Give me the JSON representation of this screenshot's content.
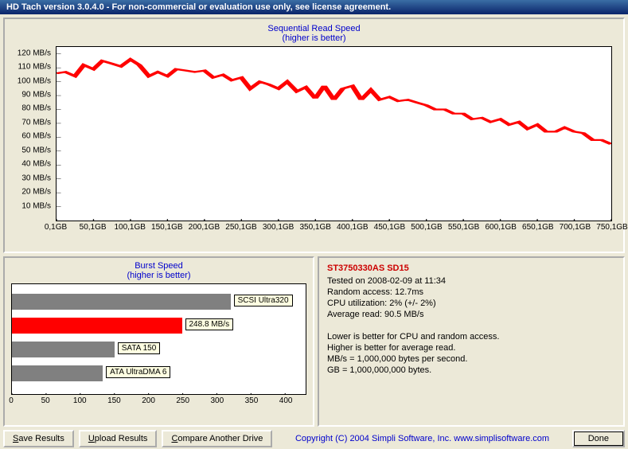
{
  "window": {
    "title": "HD Tach version 3.0.4.0  - For non-commercial or evaluation use only, see license agreement."
  },
  "sequential_chart": {
    "type": "line",
    "title": "Sequential Read Speed",
    "subtitle": "(higher is better)",
    "title_color": "#0000cc",
    "line_color": "#ff0000",
    "line_width": 2,
    "background_color": "#ffffff",
    "tick_color": "#000000",
    "xlim": [
      0.1,
      750.1
    ],
    "ylim": [
      0,
      125
    ],
    "xtick_step": 50,
    "ytick_step": 10,
    "x_unit": "GB",
    "y_unit": "MB/s",
    "y_labels": [
      "10 MB/s",
      "20 MB/s",
      "30 MB/s",
      "40 MB/s",
      "50 MB/s",
      "60 MB/s",
      "70 MB/s",
      "80 MB/s",
      "90 MB/s",
      "100 MB/s",
      "110 MB/s",
      "120 MB/s"
    ],
    "x_labels": [
      "0,1GB",
      "50,1GB",
      "100,1GB",
      "150,1GB",
      "200,1GB",
      "250,1GB",
      "300,1GB",
      "350,1GB",
      "400,1GB",
      "450,1GB",
      "500,1GB",
      "550,1GB",
      "600,1GB",
      "650,1GB",
      "700,1GB",
      "750,1GB"
    ],
    "data": [
      [
        0,
        106
      ],
      [
        12,
        107
      ],
      [
        25,
        104
      ],
      [
        37,
        112
      ],
      [
        50,
        109
      ],
      [
        62,
        115
      ],
      [
        75,
        113
      ],
      [
        87,
        111
      ],
      [
        100,
        116
      ],
      [
        112,
        112
      ],
      [
        125,
        104
      ],
      [
        137,
        107
      ],
      [
        150,
        104
      ],
      [
        162,
        109
      ],
      [
        175,
        108
      ],
      [
        187,
        107
      ],
      [
        200,
        108
      ],
      [
        212,
        103
      ],
      [
        225,
        105
      ],
      [
        237,
        101
      ],
      [
        250,
        103
      ],
      [
        262,
        95
      ],
      [
        275,
        100
      ],
      [
        287,
        98
      ],
      [
        300,
        95
      ],
      [
        312,
        100
      ],
      [
        325,
        93
      ],
      [
        337,
        96
      ],
      [
        350,
        88
      ],
      [
        362,
        97
      ],
      [
        375,
        87
      ],
      [
        387,
        95
      ],
      [
        400,
        97
      ],
      [
        412,
        87
      ],
      [
        425,
        94
      ],
      [
        437,
        87
      ],
      [
        450,
        89
      ],
      [
        462,
        86
      ],
      [
        475,
        87
      ],
      [
        487,
        85
      ],
      [
        500,
        83
      ],
      [
        512,
        80
      ],
      [
        525,
        80
      ],
      [
        537,
        77
      ],
      [
        550,
        77
      ],
      [
        562,
        73
      ],
      [
        575,
        74
      ],
      [
        587,
        71
      ],
      [
        600,
        73
      ],
      [
        612,
        69
      ],
      [
        625,
        71
      ],
      [
        637,
        66
      ],
      [
        650,
        69
      ],
      [
        662,
        64
      ],
      [
        675,
        64
      ],
      [
        687,
        67
      ],
      [
        700,
        64
      ],
      [
        712,
        63
      ],
      [
        725,
        58
      ],
      [
        737,
        58
      ],
      [
        750,
        55
      ]
    ]
  },
  "burst_chart": {
    "type": "bar-horizontal",
    "title": "Burst Speed",
    "subtitle": "(higher is better)",
    "title_color": "#0000cc",
    "background_color": "#ffffff",
    "xlim": [
      0,
      430
    ],
    "xtick_step": 50,
    "x_labels": [
      "0",
      "50",
      "100",
      "150",
      "200",
      "250",
      "300",
      "350",
      "400"
    ],
    "bars": [
      {
        "label": "SCSI Ultra320",
        "value": 320,
        "color": "#808080"
      },
      {
        "label": "248.8 MB/s",
        "value": 248.8,
        "color": "#ff0000"
      },
      {
        "label": "SATA 150",
        "value": 150,
        "color": "#808080"
      },
      {
        "label": "ATA UltraDMA 6",
        "value": 133,
        "color": "#808080"
      }
    ],
    "label_box_bg": "#ffffe1"
  },
  "info": {
    "drive": "ST3750330AS SD15",
    "tested_on": "Tested on 2008-02-09 at 11:34",
    "random_access": "Random access: 12.7ms",
    "cpu_util": "CPU utilization: 2% (+/- 2%)",
    "avg_read": "Average read: 90.5 MB/s",
    "note1": "Lower is better for CPU and random access.",
    "note2": "Higher is better for average read.",
    "note3": "MB/s = 1,000,000 bytes per second.",
    "note4": "GB = 1,000,000,000 bytes."
  },
  "buttons": {
    "save": "Save Results",
    "upload": "Upload Results",
    "compare": "Compare Another Drive",
    "done": "Done"
  },
  "copyright": "Copyright (C) 2004 Simpli Software, Inc. www.simplisoftware.com"
}
